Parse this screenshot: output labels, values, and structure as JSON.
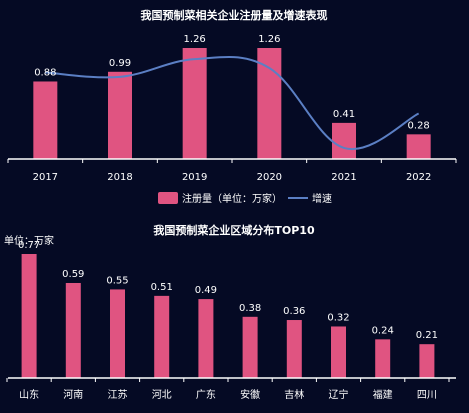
{
  "colors": {
    "background": "#050a24",
    "bar": "#e05481",
    "line": "#5b7fc4",
    "axis": "#ffffff",
    "text": "#ffffff"
  },
  "chart_data": [
    {
      "type": "bar",
      "title": "我国预制菜相关企业注册量及增速表现",
      "categories": [
        "2017",
        "2018",
        "2019",
        "2020",
        "2021",
        "2022"
      ],
      "series": [
        {
          "name": "注册量（单位：万家）",
          "type": "bar",
          "values": [
            0.88,
            0.99,
            1.26,
            1.26,
            0.41,
            0.28
          ],
          "labels": [
            "0.88",
            "0.99",
            "1.26",
            "1.26",
            "0.41",
            "0.28"
          ]
        },
        {
          "name": "增速",
          "type": "line",
          "smooth": true,
          "relative_level": [
            0.78,
            0.74,
            0.9,
            0.82,
            0.1,
            0.41
          ]
        }
      ],
      "ylim": [
        0,
        1.26
      ],
      "grid": false,
      "legend": "bottom-center"
    },
    {
      "type": "bar",
      "title": "我国预制菜企业区域分布TOP10",
      "unit_label": "单位：万家",
      "categories": [
        "山东",
        "河南",
        "江苏",
        "河北",
        "广东",
        "安徽",
        "吉林",
        "辽宁",
        "福建",
        "四川"
      ],
      "series": [
        {
          "values": [
            0.77,
            0.59,
            0.55,
            0.51,
            0.49,
            0.38,
            0.36,
            0.32,
            0.24,
            0.21
          ],
          "labels": [
            "0.77",
            "0.59",
            "0.55",
            "0.51",
            "0.49",
            "0.38",
            "0.36",
            "0.32",
            "0.24",
            "0.21"
          ]
        }
      ],
      "ylim": [
        0,
        0.77
      ],
      "grid": false,
      "legend": "none"
    }
  ]
}
